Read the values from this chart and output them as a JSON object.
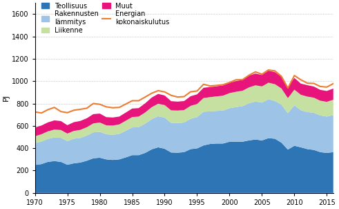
{
  "years": [
    1970,
    1971,
    1972,
    1973,
    1974,
    1975,
    1976,
    1977,
    1978,
    1979,
    1980,
    1981,
    1982,
    1983,
    1984,
    1985,
    1986,
    1987,
    1988,
    1989,
    1990,
    1991,
    1992,
    1993,
    1994,
    1995,
    1996,
    1997,
    1998,
    1999,
    2000,
    2001,
    2002,
    2003,
    2004,
    2005,
    2006,
    2007,
    2008,
    2009,
    2010,
    2011,
    2012,
    2013,
    2014,
    2015,
    2016
  ],
  "teollisuus": [
    250,
    258,
    278,
    285,
    278,
    252,
    265,
    272,
    288,
    310,
    315,
    300,
    295,
    300,
    318,
    338,
    338,
    358,
    390,
    408,
    395,
    362,
    360,
    365,
    392,
    398,
    425,
    438,
    442,
    442,
    458,
    458,
    458,
    470,
    478,
    470,
    490,
    485,
    450,
    388,
    422,
    408,
    392,
    385,
    365,
    358,
    365
  ],
  "rakennusten_lammitys": [
    195,
    202,
    205,
    212,
    215,
    212,
    220,
    220,
    225,
    232,
    232,
    225,
    225,
    228,
    238,
    248,
    250,
    262,
    270,
    278,
    278,
    265,
    265,
    265,
    272,
    280,
    302,
    292,
    292,
    295,
    300,
    310,
    318,
    332,
    340,
    338,
    348,
    338,
    340,
    325,
    362,
    332,
    332,
    332,
    328,
    325,
    332
  ],
  "liikenne": [
    62,
    65,
    68,
    70,
    70,
    67,
    70,
    72,
    75,
    80,
    83,
    80,
    83,
    85,
    90,
    93,
    95,
    100,
    107,
    112,
    113,
    112,
    112,
    112,
    115,
    118,
    122,
    127,
    130,
    133,
    135,
    137,
    138,
    142,
    145,
    145,
    148,
    150,
    145,
    135,
    140,
    138,
    138,
    135,
    132,
    132,
    137
  ],
  "muut": [
    78,
    78,
    80,
    82,
    80,
    75,
    78,
    80,
    80,
    83,
    80,
    73,
    72,
    70,
    73,
    76,
    76,
    82,
    86,
    88,
    86,
    82,
    80,
    80,
    86,
    86,
    92,
    90,
    90,
    92,
    92,
    96,
    98,
    105,
    105,
    102,
    108,
    108,
    105,
    98,
    105,
    100,
    102,
    100,
    97,
    97,
    100
  ],
  "kokonaiskulutus": [
    725,
    715,
    745,
    765,
    728,
    718,
    740,
    748,
    758,
    800,
    793,
    770,
    762,
    765,
    795,
    825,
    825,
    858,
    892,
    915,
    904,
    873,
    858,
    862,
    905,
    912,
    972,
    957,
    962,
    968,
    988,
    1012,
    1013,
    1053,
    1083,
    1062,
    1100,
    1092,
    1043,
    938,
    1050,
    1012,
    982,
    980,
    952,
    947,
    978
  ],
  "teollisuus_color": "#2E75B6",
  "rakennusten_color": "#9DC3E6",
  "liikenne_color": "#C5E0A0",
  "muut_color": "#E7157B",
  "kokonaiskulutus_color": "#ED7D31",
  "ylabel": "PJ",
  "ylim": [
    0,
    1700
  ],
  "yticks": [
    0,
    200,
    400,
    600,
    800,
    1000,
    1200,
    1400,
    1600
  ],
  "xticks": [
    1970,
    1975,
    1980,
    1985,
    1990,
    1995,
    2000,
    2005,
    2010,
    2015
  ],
  "legend_teollisuus": "Teollisuus",
  "legend_rakennusten": "Rakennusten\nlämmitys",
  "legend_liikenne": "Liikenne",
  "legend_muut": "Muut",
  "legend_kokonaiskulutus": "Energian\nkokonaiskulutus"
}
